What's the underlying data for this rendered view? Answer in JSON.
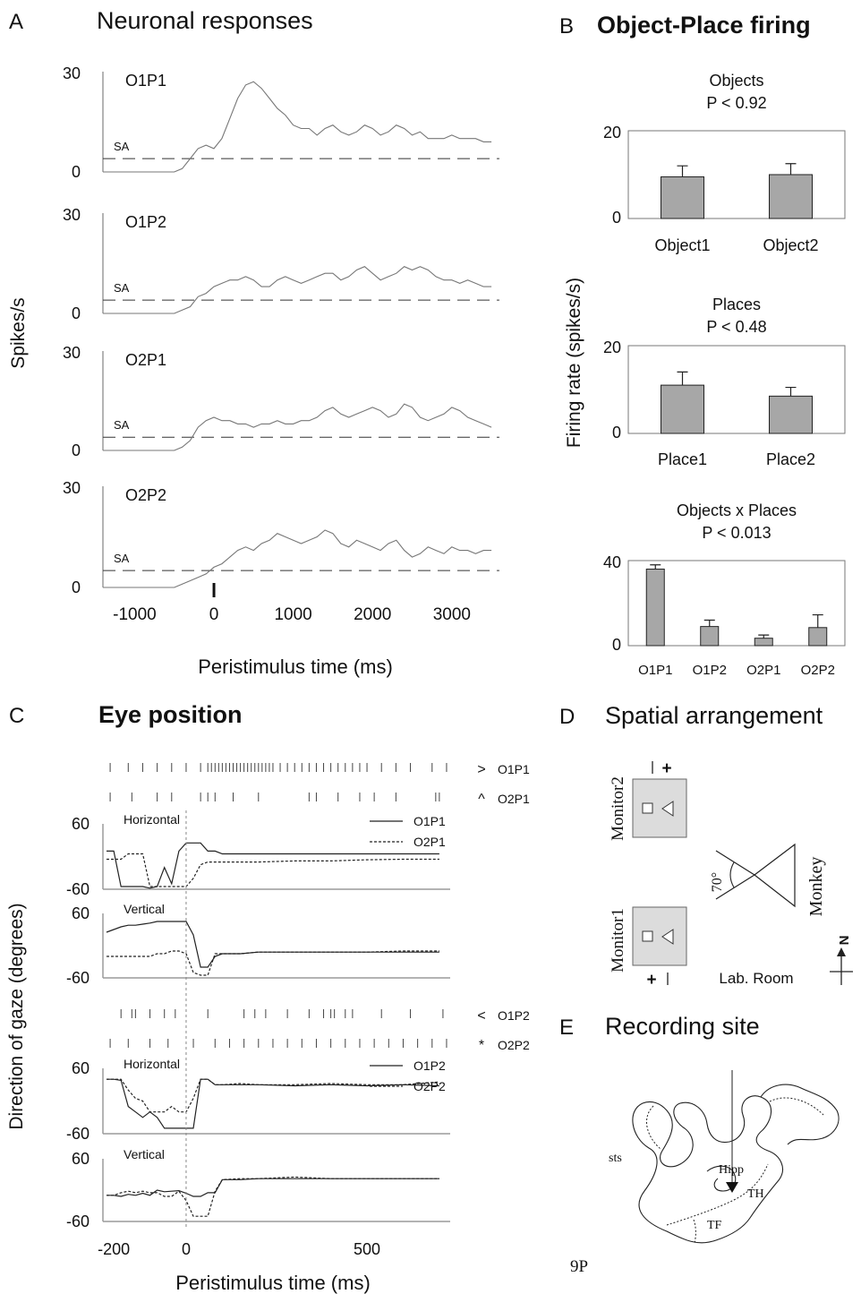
{
  "panels": {
    "A": {
      "letter": "A",
      "title": "Neuronal responses"
    },
    "B": {
      "letter": "B",
      "title": "Object-Place firing"
    },
    "C": {
      "letter": "C",
      "title": "Eye position"
    },
    "D": {
      "letter": "D",
      "title": "Spatial arrangement"
    },
    "E": {
      "letter": "E",
      "title": "Recording site"
    }
  },
  "panelA": {
    "ylabel": "Spikes/s",
    "xlabel": "Peristimulus time (ms)",
    "sa_label": "SA",
    "y_ticks": [
      "30",
      "0"
    ],
    "x_ticks": [
      "-1000",
      "0",
      "1000",
      "2000",
      "3000"
    ]
  },
  "panelB": {
    "ylabel": "Firing rate (spikes/s)",
    "x_labels": [
      "Object1",
      "Object2",
      "Place1",
      "Place2",
      "O1P1",
      "O1P2",
      "O2P1",
      "O2P2"
    ],
    "titles": [
      "Objects",
      "Places",
      "Objects x Places"
    ],
    "p_values": [
      "P < 0.92",
      "P < 0.48",
      "P < 0.013"
    ],
    "y_max_labels": [
      "20",
      "20",
      "40"
    ],
    "y_zero": "0"
  },
  "panelC": {
    "ylabel": "Direction of gaze (degrees)",
    "xlabel": "Peristimulus time (ms)",
    "x_ticks": [
      "-200",
      "0",
      "500"
    ],
    "y_ticks": [
      "60",
      "-60"
    ],
    "row_labels": [
      "Horizontal",
      "Vertical",
      "Horizontal",
      "Vertical"
    ],
    "legend1": [
      "O1P1",
      "O2P1"
    ],
    "legend2": [
      "O1P2",
      "O2P2"
    ],
    "raster_labels": [
      "O1P1",
      "O2P1",
      "O1P2",
      "O2P2"
    ],
    "raster_symbols": [
      ">",
      "^",
      "<",
      "*"
    ]
  },
  "panelD": {
    "monitor1": "Monitor1",
    "monitor2": "Monitor2",
    "monkey": "Monkey",
    "angle": "70°",
    "room": "Lab. Room",
    "north": "N",
    "plus": "+"
  },
  "panelE": {
    "labels": [
      "sts",
      "Hipp",
      "TH",
      "TF"
    ],
    "section": "9P"
  },
  "chart_data": [
    {
      "type": "line",
      "title": "Neuronal responses",
      "ylabel": "Spikes/s",
      "xlabel": "Peristimulus time (ms)",
      "xlim": [
        -1400,
        3600
      ],
      "ylim": [
        0,
        30
      ],
      "x": [
        -1400,
        -1000,
        -600,
        -500,
        -400,
        -300,
        -200,
        -100,
        0,
        100,
        200,
        300,
        400,
        500,
        600,
        700,
        800,
        900,
        1000,
        1100,
        1200,
        1300,
        1400,
        1500,
        1600,
        1700,
        1800,
        1900,
        2000,
        2100,
        2200,
        2300,
        2400,
        2500,
        2600,
        2700,
        2800,
        2900,
        3000,
        3100,
        3200,
        3300,
        3400,
        3500
      ],
      "series": [
        {
          "name": "O1P1",
          "sa": 4,
          "values": [
            0,
            0,
            0,
            0,
            1,
            4,
            7,
            8,
            7,
            10,
            16,
            22,
            26,
            27,
            25,
            22,
            19,
            17,
            14,
            13,
            13,
            11,
            13,
            14,
            12,
            11,
            12,
            14,
            13,
            11,
            12,
            14,
            13,
            11,
            12,
            10,
            10,
            10,
            11,
            10,
            10,
            10,
            9,
            9
          ]
        },
        {
          "name": "O1P2",
          "sa": 4,
          "values": [
            0,
            0,
            0,
            0,
            1,
            2,
            5,
            6,
            8,
            9,
            10,
            10,
            11,
            10,
            8,
            8,
            10,
            11,
            10,
            9,
            10,
            11,
            12,
            12,
            10,
            11,
            13,
            14,
            12,
            10,
            11,
            12,
            14,
            13,
            14,
            13,
            11,
            10,
            10,
            9,
            10,
            9,
            8,
            8
          ]
        },
        {
          "name": "O2P1",
          "sa": 4,
          "values": [
            0,
            0,
            0,
            0,
            1,
            3,
            7,
            9,
            10,
            9,
            9,
            8,
            8,
            7,
            8,
            8,
            9,
            8,
            8,
            9,
            9,
            10,
            12,
            13,
            11,
            10,
            11,
            12,
            13,
            12,
            10,
            11,
            14,
            13,
            10,
            9,
            10,
            11,
            13,
            12,
            10,
            9,
            8,
            7
          ]
        },
        {
          "name": "O2P2",
          "sa": 5,
          "values": [
            0,
            0,
            0,
            0,
            1,
            2,
            3,
            4,
            6,
            7,
            9,
            11,
            12,
            11,
            13,
            14,
            16,
            15,
            14,
            13,
            14,
            15,
            17,
            16,
            13,
            12,
            14,
            13,
            12,
            11,
            13,
            14,
            11,
            9,
            10,
            12,
            11,
            10,
            12,
            11,
            11,
            10,
            11,
            11
          ]
        }
      ]
    },
    {
      "type": "bar",
      "title": "Objects",
      "subtitle": "P < 0.92",
      "categories": [
        "Object1",
        "Object2"
      ],
      "values": [
        9.5,
        10
      ],
      "errors": [
        2.5,
        2.5
      ],
      "ylim": [
        0,
        20
      ],
      "ylabel": "Firing rate (spikes/s)"
    },
    {
      "type": "bar",
      "title": "Places",
      "subtitle": "P < 0.48",
      "categories": [
        "Place1",
        "Place2"
      ],
      "values": [
        11,
        8.5
      ],
      "errors": [
        3,
        2
      ],
      "ylim": [
        0,
        20
      ],
      "ylabel": "Firing rate (spikes/s)"
    },
    {
      "type": "bar",
      "title": "Objects x Places",
      "subtitle": "P < 0.013",
      "categories": [
        "O1P1",
        "O1P2",
        "O2P1",
        "O2P2"
      ],
      "values": [
        36,
        9,
        3.5,
        8.5
      ],
      "errors": [
        2,
        3,
        1.5,
        6
      ],
      "ylim": [
        0,
        40
      ],
      "ylabel": "Firing rate (spikes/s)"
    },
    {
      "type": "line",
      "title": "Eye position",
      "ylabel": "Direction of gaze (degrees)",
      "xlabel": "Peristimulus time (ms)",
      "xlim": [
        -230,
        730
      ],
      "ylim": [
        -60,
        60
      ],
      "x": [
        -220,
        -200,
        -180,
        -160,
        -140,
        -120,
        -100,
        -80,
        -60,
        -40,
        -20,
        0,
        20,
        40,
        60,
        80,
        100,
        150,
        200,
        300,
        400,
        500,
        600,
        700
      ],
      "panels": [
        {
          "name": "Horizontal",
          "series": [
            {
              "name": "O1P1",
              "values": [
                10,
                10,
                -55,
                -55,
                -55,
                -55,
                -58,
                -55,
                -20,
                -50,
                10,
                25,
                25,
                25,
                10,
                10,
                5,
                5,
                5,
                5,
                5,
                5,
                5,
                5
              ]
            },
            {
              "name": "O2P1",
              "values": [
                -5,
                -5,
                -5,
                5,
                5,
                5,
                -55,
                -55,
                -55,
                -55,
                -55,
                -55,
                -40,
                -15,
                -10,
                -10,
                -10,
                -10,
                -10,
                -8,
                -8,
                -6,
                -5,
                -5
              ]
            }
          ]
        },
        {
          "name": "Vertical",
          "series": [
            {
              "name": "O1P2",
              "values": [
                25,
                30,
                35,
                38,
                38,
                40,
                42,
                45,
                45,
                45,
                45,
                45,
                20,
                -40,
                -40,
                -20,
                -15,
                -15,
                -12,
                -12,
                -12,
                -12,
                -12,
                -12
              ]
            },
            {
              "name": "O2P2",
              "values": [
                -20,
                -20,
                -20,
                -20,
                -20,
                -20,
                -20,
                -15,
                -15,
                -10,
                -10,
                -15,
                -50,
                -55,
                -55,
                -15,
                -15,
                -15,
                -12,
                -12,
                -12,
                -12,
                -10,
                -10
              ]
            }
          ]
        },
        {
          "name": "Horizontal",
          "series": [
            {
              "name": "O1P2",
              "values": [
                40,
                40,
                38,
                -10,
                -20,
                -30,
                -20,
                -30,
                -50,
                -50,
                -50,
                -50,
                -50,
                40,
                40,
                30,
                30,
                30,
                30,
                28,
                30,
                28,
                30,
                28
              ]
            },
            {
              "name": "O2P2",
              "values": [
                40,
                40,
                40,
                20,
                5,
                0,
                -20,
                -20,
                -20,
                -10,
                -20,
                -20,
                5,
                40,
                40,
                30,
                30,
                32,
                30,
                30,
                32,
                30,
                30,
                35
              ]
            }
          ]
        },
        {
          "name": "Vertical",
          "series": [
            {
              "name": "O1P2",
              "values": [
                -10,
                -10,
                -12,
                -8,
                -10,
                -6,
                -10,
                0,
                -3,
                -2,
                -1,
                -6,
                -12,
                -12,
                -5,
                -5,
                20,
                20,
                22,
                22,
                22,
                22,
                22,
                22
              ]
            },
            {
              "name": "O2P2",
              "values": [
                -10,
                -10,
                -5,
                -2,
                -5,
                -2,
                -5,
                -5,
                -12,
                -12,
                -2,
                -20,
                -50,
                -50,
                -50,
                -2,
                20,
                22,
                22,
                25,
                22,
                22,
                22,
                22
              ]
            }
          ]
        }
      ]
    }
  ]
}
